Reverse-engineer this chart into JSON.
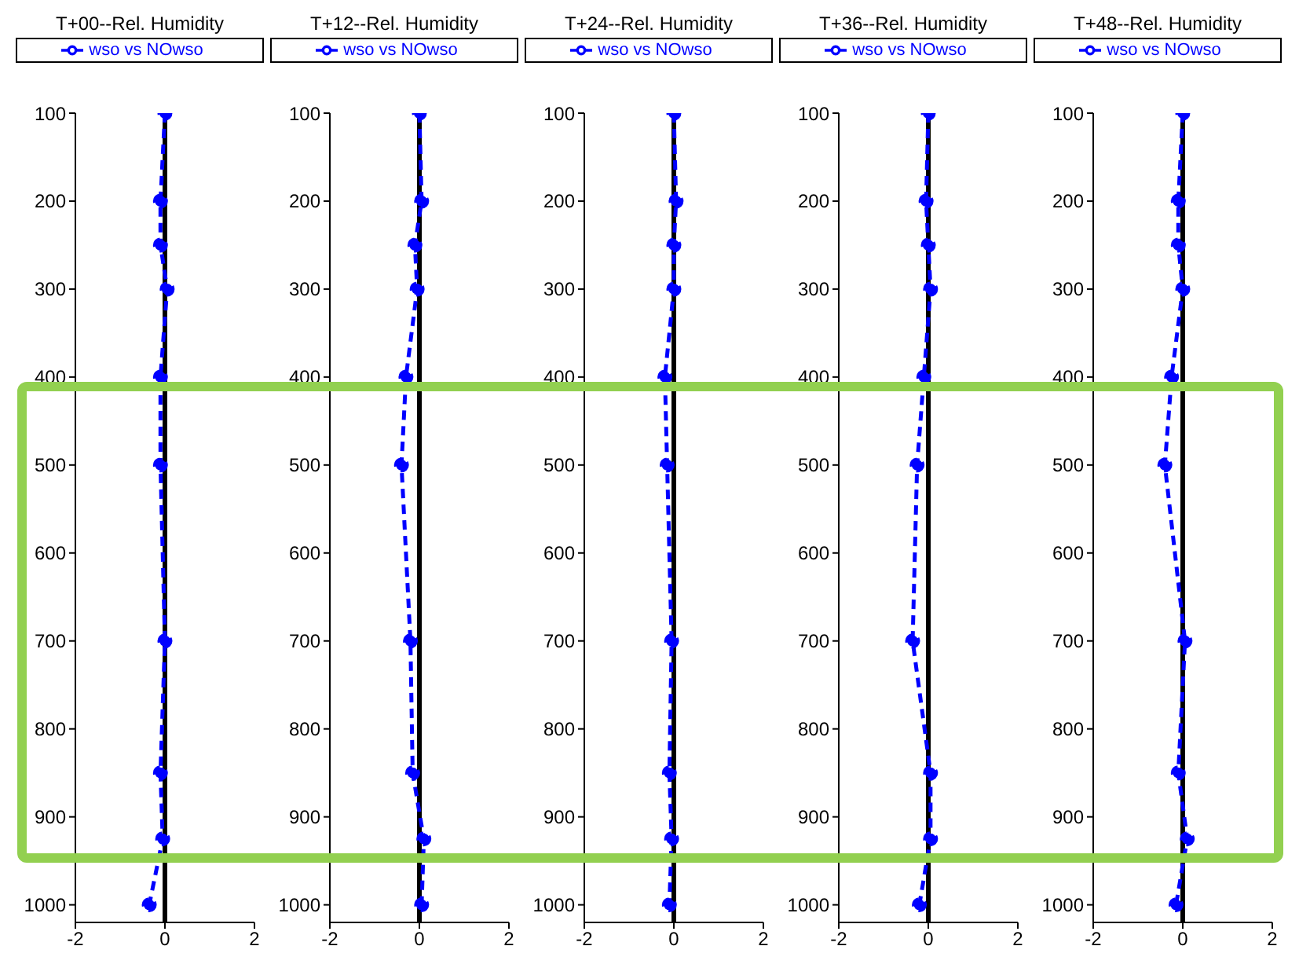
{
  "chart_data": [
    {
      "type": "line",
      "title": "T+00--Rel. Humidity",
      "orientation": "horizontal",
      "x": [
        100,
        200,
        250,
        300,
        400,
        500,
        700,
        850,
        925,
        1000
      ],
      "series": [
        {
          "name": "wso vs NOwso",
          "color": "#0000ff",
          "values": [
            0,
            -0.1,
            -0.1,
            0.05,
            -0.1,
            -0.1,
            0,
            -0.1,
            -0.05,
            -0.35
          ]
        }
      ],
      "xlim": [
        -2,
        2
      ],
      "xticks": [
        -2,
        0,
        2
      ],
      "ylim": [
        1020,
        100
      ],
      "yticks": [
        100,
        200,
        300,
        400,
        500,
        600,
        700,
        800,
        900,
        1000
      ],
      "ref_lines": [
        {
          "axis": "x",
          "value": 0,
          "color": "#000000"
        }
      ],
      "marker": "circle",
      "line_style": "dashed",
      "grid": false,
      "legend": "top"
    },
    {
      "type": "line",
      "title": "T+12--Rel. Humidity",
      "orientation": "horizontal",
      "x": [
        100,
        200,
        250,
        300,
        400,
        500,
        700,
        850,
        925,
        1000
      ],
      "series": [
        {
          "name": "wso vs NOwso",
          "color": "#0000ff",
          "values": [
            0,
            0.05,
            -0.1,
            -0.05,
            -0.3,
            -0.4,
            -0.2,
            -0.15,
            0.1,
            0.05
          ]
        }
      ],
      "xlim": [
        -2,
        2
      ],
      "xticks": [
        -2,
        0,
        2
      ],
      "ylim": [
        1020,
        100
      ],
      "yticks": [
        100,
        200,
        300,
        400,
        500,
        600,
        700,
        800,
        900,
        1000
      ],
      "ref_lines": [
        {
          "axis": "x",
          "value": 0,
          "color": "#000000"
        }
      ],
      "marker": "circle",
      "line_style": "dashed",
      "grid": false,
      "legend": "top"
    },
    {
      "type": "line",
      "title": "T+24--Rel. Humidity",
      "orientation": "horizontal",
      "x": [
        100,
        200,
        250,
        300,
        400,
        500,
        700,
        850,
        925,
        1000
      ],
      "series": [
        {
          "name": "wso vs NOwso",
          "color": "#0000ff",
          "values": [
            0,
            0.05,
            0,
            0,
            -0.2,
            -0.15,
            -0.05,
            -0.1,
            -0.05,
            -0.1
          ]
        }
      ],
      "xlim": [
        -2,
        2
      ],
      "xticks": [
        -2,
        0,
        2
      ],
      "ylim": [
        1020,
        100
      ],
      "yticks": [
        100,
        200,
        300,
        400,
        500,
        600,
        700,
        800,
        900,
        1000
      ],
      "ref_lines": [
        {
          "axis": "x",
          "value": 0,
          "color": "#000000"
        }
      ],
      "marker": "circle",
      "line_style": "dashed",
      "grid": false,
      "legend": "top"
    },
    {
      "type": "line",
      "title": "T+36--Rel. Humidity",
      "orientation": "horizontal",
      "x": [
        100,
        200,
        250,
        300,
        400,
        500,
        700,
        850,
        925,
        1000
      ],
      "series": [
        {
          "name": "wso vs NOwso",
          "color": "#0000ff",
          "values": [
            0,
            -0.05,
            0,
            0.05,
            -0.1,
            -0.25,
            -0.35,
            0.05,
            0.05,
            -0.2
          ]
        }
      ],
      "xlim": [
        -2,
        2
      ],
      "xticks": [
        -2,
        0,
        2
      ],
      "ylim": [
        1020,
        100
      ],
      "yticks": [
        100,
        200,
        300,
        400,
        500,
        600,
        700,
        800,
        900,
        1000
      ],
      "ref_lines": [
        {
          "axis": "x",
          "value": 0,
          "color": "#000000"
        }
      ],
      "marker": "circle",
      "line_style": "dashed",
      "grid": false,
      "legend": "top"
    },
    {
      "type": "line",
      "title": "T+48--Rel. Humidity",
      "orientation": "horizontal",
      "x": [
        100,
        200,
        250,
        300,
        400,
        500,
        700,
        850,
        925,
        1000
      ],
      "series": [
        {
          "name": "wso vs NOwso",
          "color": "#0000ff",
          "values": [
            0,
            -0.1,
            -0.1,
            0,
            -0.25,
            -0.4,
            0.05,
            -0.1,
            0.1,
            -0.15
          ]
        }
      ],
      "xlim": [
        -2,
        2
      ],
      "xticks": [
        -2,
        0,
        2
      ],
      "ylim": [
        1020,
        100
      ],
      "yticks": [
        100,
        200,
        300,
        400,
        500,
        600,
        700,
        800,
        900,
        1000
      ],
      "ref_lines": [
        {
          "axis": "x",
          "value": 0,
          "color": "#000000"
        }
      ],
      "marker": "circle",
      "line_style": "dashed",
      "grid": false,
      "legend": "top"
    }
  ]
}
